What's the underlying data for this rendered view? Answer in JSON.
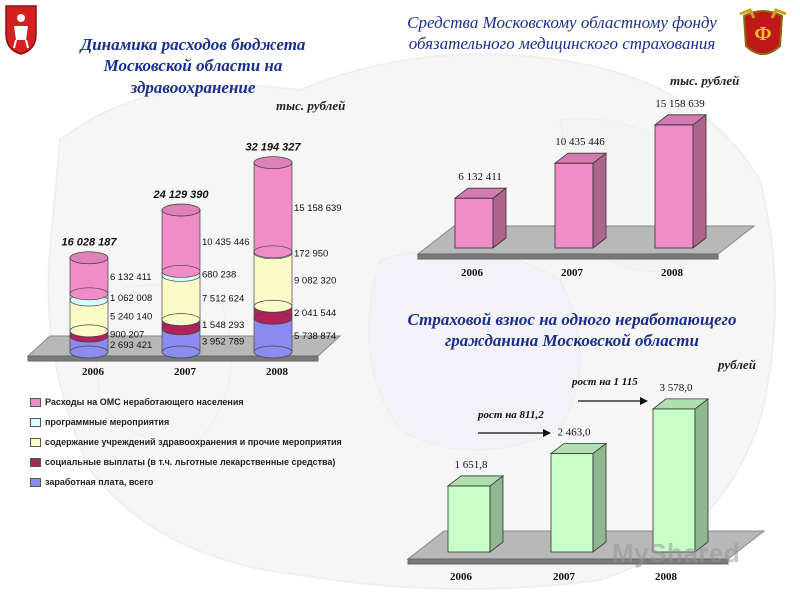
{
  "titles": {
    "left": "Динамика расходов бюджета Московской области на здравоохранение",
    "top_right": "Средства Московскому областному фонду обязательного медицинского страхования",
    "bottom_right": "Страховой взнос на одного неработающего гражданина Московской области"
  },
  "units": {
    "left": "тыс. рублей",
    "top_right": "тыс. рублей",
    "bottom_right": "рублей"
  },
  "watermark": "MyShared",
  "colors": {
    "title_blue": "#1a2e8c",
    "pink": "#f08cc8",
    "light_yellow": "#fbfbc8",
    "light_cyan": "#d8fbfb",
    "maroon": "#b0225a",
    "purple_blue": "#8c8cf0",
    "light_green": "#c8ffc8"
  },
  "chart_data": [
    {
      "id": "left",
      "type": "bar",
      "stacked": true,
      "categories": [
        "2006",
        "2007",
        "2008"
      ],
      "series": [
        {
          "name": "заработная плата, всего",
          "color": "#8c8cf0",
          "values": [
            2693421,
            3952789,
            5738874
          ],
          "labels": [
            "2 693 421",
            "3 952 789",
            "5 738 874"
          ]
        },
        {
          "name": "социальные выплаты (в т.ч. льготные лекарственные средства)",
          "color": "#b0225a",
          "values": [
            900207,
            1548293,
            2041544
          ],
          "labels": [
            "900 207",
            "1 548 293",
            "2 041 544"
          ]
        },
        {
          "name": "содержание учреждений здравоохранения и прочие мероприятия",
          "color": "#fbfbc8",
          "values": [
            5240140,
            7512624,
            9082320
          ],
          "labels": [
            "5 240 140",
            "7 512 624",
            "9 082 320"
          ]
        },
        {
          "name": "программные мероприятия",
          "color": "#d8fbfb",
          "values": [
            1062008,
            680238,
            172950
          ],
          "labels": [
            "1 062 008",
            "680 238",
            "172 950"
          ]
        },
        {
          "name": "Расходы на ОМС неработающего населения",
          "color": "#f08cc8",
          "values": [
            6132411,
            10435446,
            15158639
          ],
          "labels": [
            "6 132 411",
            "10 435 446",
            "15 158 639"
          ]
        }
      ],
      "totals": [
        "16 028 187",
        "24 129 390",
        "32 194 327"
      ],
      "legend_order": [
        "Расходы на ОМС неработающего населения",
        "программные мероприятия",
        "содержание учреждений здравоохранения  и прочие мероприятия",
        "социальные выплаты (в т.ч. льготные лекарственные средства)",
        "заработная плата, всего"
      ],
      "legend_colors": [
        "#f08cc8",
        "#d8fbfb",
        "#fbfbc8",
        "#b0225a",
        "#8c8cf0"
      ],
      "ylim": [
        0,
        34000000
      ]
    },
    {
      "id": "top_right",
      "type": "bar",
      "categories": [
        "2006",
        "2007",
        "2008"
      ],
      "values": [
        6132411,
        10435446,
        15158639
      ],
      "value_labels": [
        "6 132 411",
        "10 435 446",
        "15 158 639"
      ],
      "color": "#f08cc8",
      "ylim": [
        0,
        16000000
      ]
    },
    {
      "id": "bottom_right",
      "type": "bar",
      "categories": [
        "2006",
        "2007",
        "2008"
      ],
      "values": [
        1651.8,
        2463.0,
        3578.0
      ],
      "value_labels": [
        "1 651,8",
        "2 463,0",
        "3 578,0"
      ],
      "color": "#c8ffc8",
      "annotations": [
        "рост на 811,2",
        "рост на 1 115"
      ],
      "ylim": [
        0,
        3800
      ]
    }
  ]
}
